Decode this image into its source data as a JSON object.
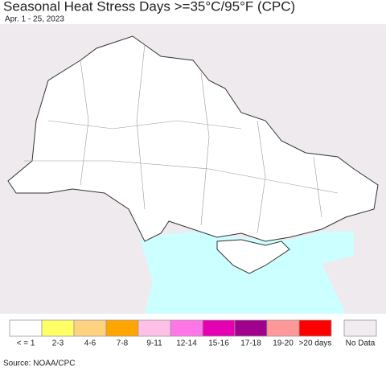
{
  "header": {
    "title": "Seasonal Heat Stress Days >=35°C/95°F (CPC)",
    "subtitle": "Apr. 1 - 25, 2023"
  },
  "legend": {
    "items": [
      {
        "label": "< = 1",
        "color": "#ffffff"
      },
      {
        "label": "2-3",
        "color": "#ffff66"
      },
      {
        "label": "4-6",
        "color": "#ffd27f"
      },
      {
        "label": "7-8",
        "color": "#ffa500"
      },
      {
        "label": "9-11",
        "color": "#ffc0e8"
      },
      {
        "label": "12-14",
        "color": "#ff77e6"
      },
      {
        "label": "15-16",
        "color": "#e600b3"
      },
      {
        "label": "17-18",
        "color": "#a0008c"
      },
      {
        "label": "19-20",
        "color": "#ff9999"
      },
      {
        "label": ">20 days",
        "color": "#ff0000"
      }
    ],
    "no_data": {
      "label": "No Data",
      "color": "#f0ecf0"
    }
  },
  "footer": {
    "source": "Source: NOAA/CPC"
  }
}
